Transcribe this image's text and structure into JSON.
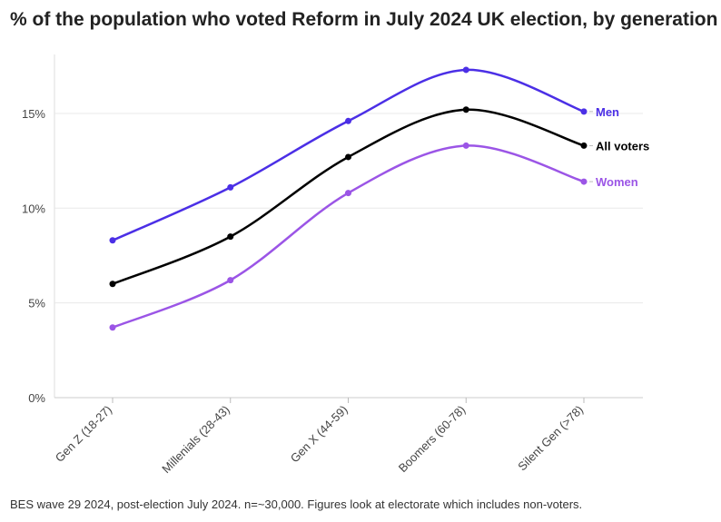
{
  "chart_data": {
    "type": "line",
    "title": "% of the population who voted Reform in July 2024 UK election, by generation",
    "note": "BES wave 29 2024, post-election July 2024. n=~30,000. Figures look at electorate which includes non-voters.",
    "categories": [
      "Gen Z (18-27)",
      "Millenials (28-43)",
      "Gen X (44-59)",
      "Boomers (60-78)",
      "Silent Gen (>78)"
    ],
    "yticks": [
      {
        "v": 0,
        "label": "0%"
      },
      {
        "v": 5,
        "label": "5%"
      },
      {
        "v": 10,
        "label": "10%"
      },
      {
        "v": 15,
        "label": "15%"
      }
    ],
    "ylim": [
      0,
      18
    ],
    "series": [
      {
        "name": "Men",
        "color": "#4b2fe6",
        "values": [
          8.3,
          11.1,
          14.6,
          17.3,
          15.1
        ]
      },
      {
        "name": "All voters",
        "color": "#000000",
        "values": [
          6.0,
          8.5,
          12.7,
          15.2,
          13.3
        ]
      },
      {
        "name": "Women",
        "color": "#9b55e6",
        "values": [
          3.7,
          6.2,
          10.8,
          13.3,
          11.4
        ]
      }
    ]
  }
}
